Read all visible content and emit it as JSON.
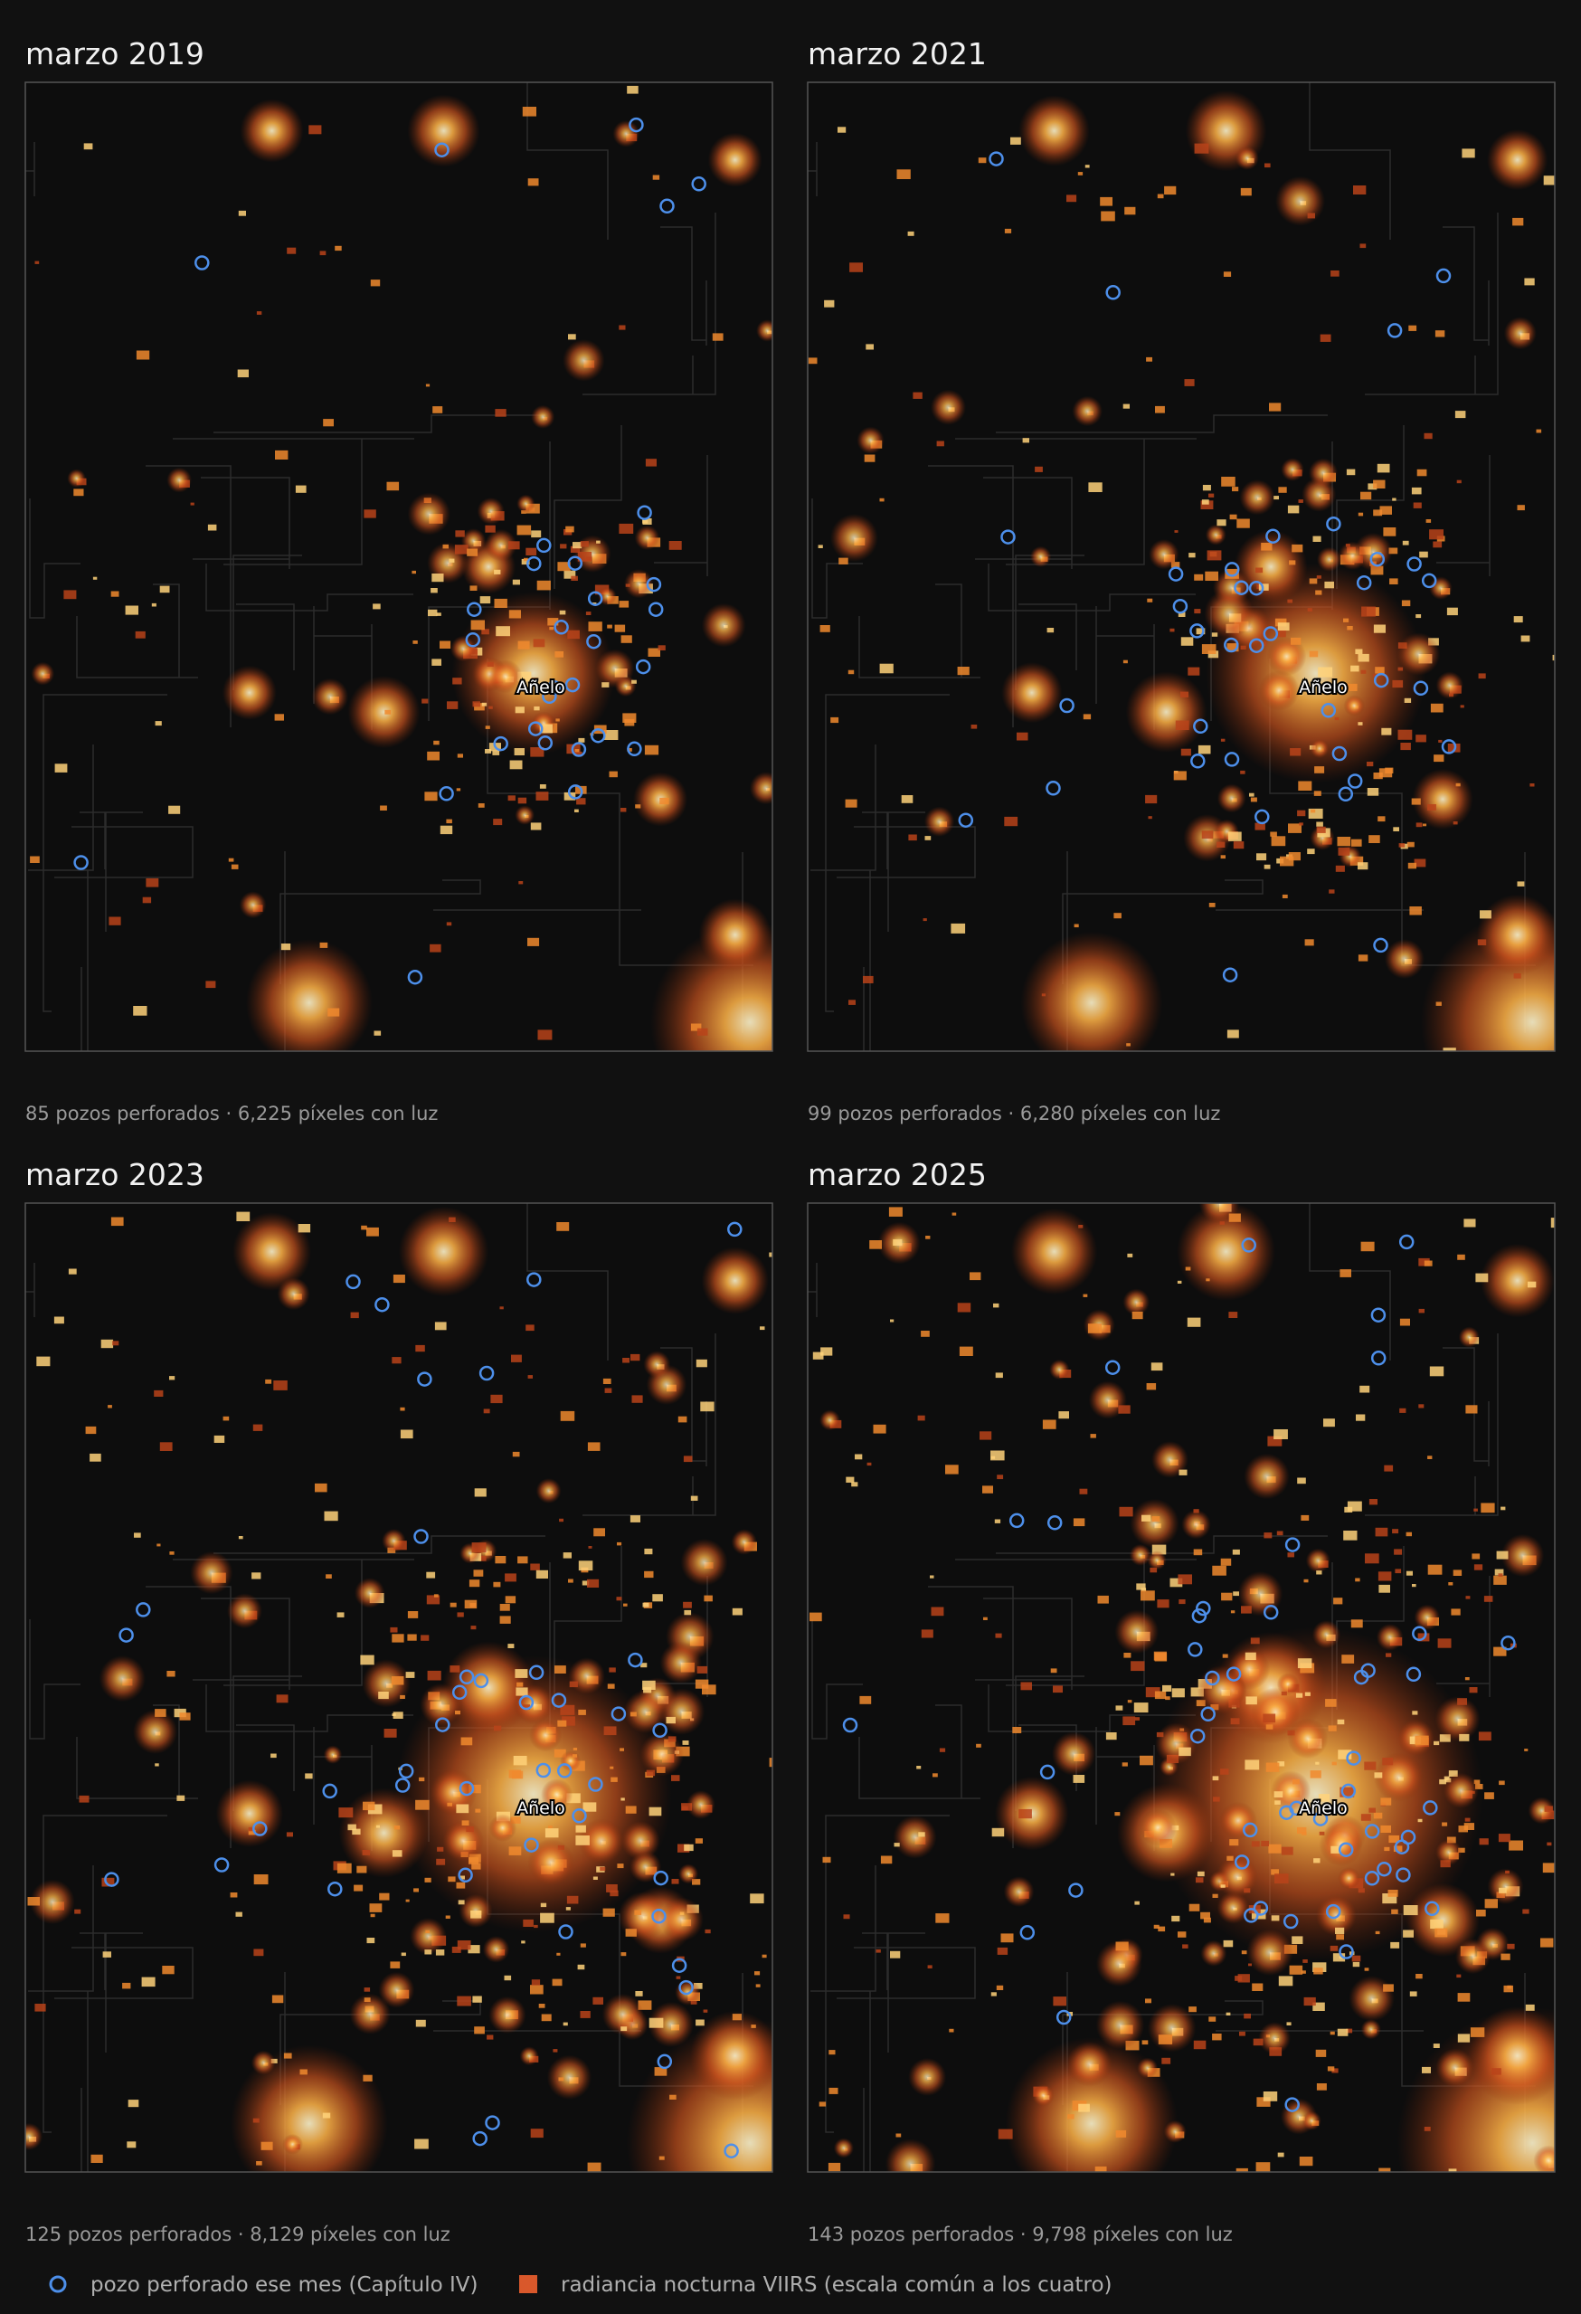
{
  "panels": [
    {
      "title": "marzo 2019",
      "caption": "85 pozos perforados · 6,225 píxeles con luz",
      "place_label": "Añelo"
    },
    {
      "title": "marzo 2021",
      "caption": "99 pozos perforados · 6,280 píxeles con luz",
      "place_label": "Añelo"
    },
    {
      "title": "marzo 2023",
      "caption": "125 pozos perforados · 8,129 píxeles con luz",
      "place_label": "Añelo"
    },
    {
      "title": "marzo 2025",
      "caption": "143 pozos perforados · 9,798 píxeles con luz",
      "place_label": "Añelo"
    }
  ],
  "legend": {
    "wells": "pozo perforado ese mes (Capítulo IV)",
    "radiance": "radiancia nocturna VIIRS (escala común a los cuatro)"
  }
}
